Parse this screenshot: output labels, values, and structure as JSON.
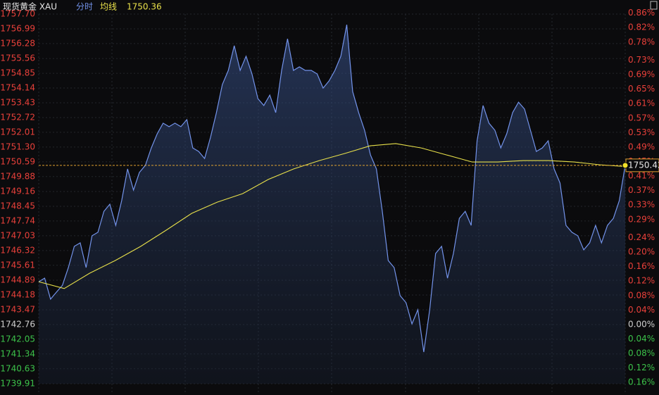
{
  "chart_data": {
    "type": "line",
    "title": "现货黄金 XAU",
    "series": [
      {
        "name": "分时",
        "color": "#7393ea",
        "values": [
          1744.82,
          1744.99,
          1743.98,
          1744.32,
          1744.65,
          1745.5,
          1746.52,
          1746.69,
          1745.5,
          1747.03,
          1747.2,
          1748.21,
          1748.55,
          1747.53,
          1748.72,
          1750.25,
          1749.23,
          1750.08,
          1750.42,
          1751.26,
          1751.94,
          1752.45,
          1752.28,
          1752.45,
          1752.28,
          1752.62,
          1751.26,
          1751.09,
          1750.75,
          1751.77,
          1752.96,
          1754.31,
          1754.99,
          1756.18,
          1754.99,
          1755.67,
          1754.82,
          1753.63,
          1753.3,
          1753.8,
          1752.96,
          1754.99,
          1756.51,
          1754.99,
          1755.16,
          1754.99,
          1754.99,
          1754.82,
          1754.14,
          1754.48,
          1754.99,
          1755.67,
          1757.19,
          1753.97,
          1752.96,
          1752.11,
          1750.92,
          1750.25,
          1748.21,
          1745.84,
          1745.5,
          1744.15,
          1743.81,
          1742.79,
          1743.47,
          1741.43,
          1743.47,
          1746.18,
          1746.52,
          1744.99,
          1746.18,
          1747.87,
          1748.21,
          1747.53,
          1751.6,
          1753.3,
          1752.45,
          1752.11,
          1751.26,
          1751.94,
          1752.96,
          1753.46,
          1753.13,
          1752.11,
          1751.09,
          1751.26,
          1751.6,
          1750.25,
          1749.57,
          1747.53,
          1747.2,
          1747.03,
          1746.35,
          1746.69,
          1747.53,
          1746.69,
          1747.53,
          1747.87,
          1748.72,
          1750.42
        ]
      },
      {
        "name": "均线",
        "color": "#e8e04a",
        "values": [
          1744.82,
          1744.49,
          1745.23,
          1745.84,
          1746.52,
          1747.3,
          1748.11,
          1748.65,
          1749.06,
          1749.74,
          1750.25,
          1750.65,
          1750.99,
          1751.36,
          1751.47,
          1751.26,
          1750.92,
          1750.58,
          1750.58,
          1750.65,
          1750.65,
          1750.58,
          1750.45,
          1750.36
        ]
      }
    ],
    "ylim": [
      1739.91,
      1757.7
    ],
    "yticks": [
      {
        "value": 1757.7,
        "label": "1757.70"
      },
      1756.99,
      1756.28,
      1755.56,
      1754.85,
      1754.14,
      1753.43,
      1752.72,
      1752.01,
      {
        "value": 1751.3,
        "label": "1751.30"
      },
      1750.59,
      1749.88,
      1749.16,
      1748.45,
      1747.74,
      1747.03,
      1746.32,
      1745.61,
      1744.89,
      1744.18,
      1743.47,
      1742.76,
      1742.05,
      1741.34,
      1740.63,
      1739.91
    ],
    "y2lim": [
      -0.1635,
      0.8573
    ],
    "y2ticks": [
      {
        "value": 0.86,
        "label": "0.86%"
      },
      {
        "value": 0.82,
        "label": "0.82%"
      },
      {
        "value": 0.78,
        "label": "0.78%"
      },
      {
        "value": 0.73,
        "label": "0.73%"
      },
      {
        "value": 0.69,
        "label": "0.69%"
      },
      {
        "value": 0.65,
        "label": "0.65%"
      },
      {
        "value": 0.61,
        "label": "0.61%"
      },
      {
        "value": 0.57,
        "label": "0.57%"
      },
      {
        "value": 0.53,
        "label": "0.53%"
      },
      {
        "value": 0.49,
        "label": "0.49%"
      },
      {
        "value": 0.45,
        "label": "0.45%"
      },
      {
        "value": 0.41,
        "label": "0.41%"
      },
      {
        "value": 0.37,
        "label": "0.37%"
      },
      {
        "value": 0.33,
        "label": "0.33%"
      },
      {
        "value": 0.29,
        "label": "0.29%"
      },
      {
        "value": 0.24,
        "label": "0.24%"
      },
      {
        "value": 0.2,
        "label": "0.20%"
      },
      {
        "value": 0.16,
        "label": "0.16%"
      },
      {
        "value": 0.12,
        "label": "0.12%"
      },
      {
        "value": 0.08,
        "label": "0.08%"
      },
      {
        "value": 0.04,
        "label": "0.04%"
      },
      {
        "value": 0,
        "label": "0.00%"
      },
      {
        "value": -0.04,
        "label": "0.04%"
      },
      {
        "value": -0.08,
        "label": "0.08%"
      },
      {
        "value": -0.12,
        "label": "0.12%"
      },
      {
        "value": -0.16,
        "label": "0.16%"
      }
    ],
    "grid": true
  }
}
